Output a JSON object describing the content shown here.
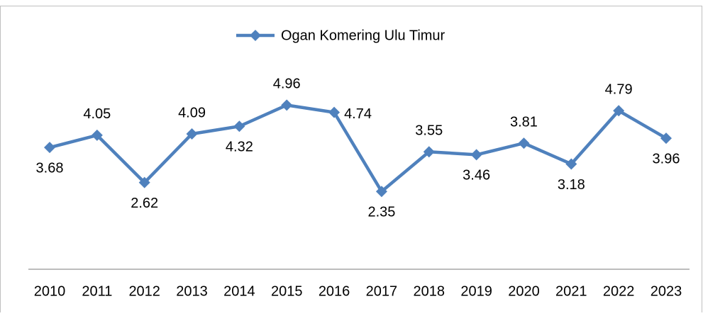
{
  "chart_data": {
    "type": "line",
    "categories": [
      "2010",
      "2011",
      "2012",
      "2013",
      "2014",
      "2015",
      "2016",
      "2017",
      "2018",
      "2019",
      "2020",
      "2021",
      "2022",
      "2023"
    ],
    "series": [
      {
        "name": "Ogan Komering Ulu Timur",
        "color": "#4f81bd",
        "values": [
          3.68,
          4.05,
          2.62,
          4.09,
          4.32,
          4.96,
          4.74,
          2.35,
          3.55,
          3.46,
          3.81,
          3.18,
          4.79,
          3.96
        ]
      }
    ],
    "ylim": [
      0,
      8
    ],
    "legend": "top"
  }
}
